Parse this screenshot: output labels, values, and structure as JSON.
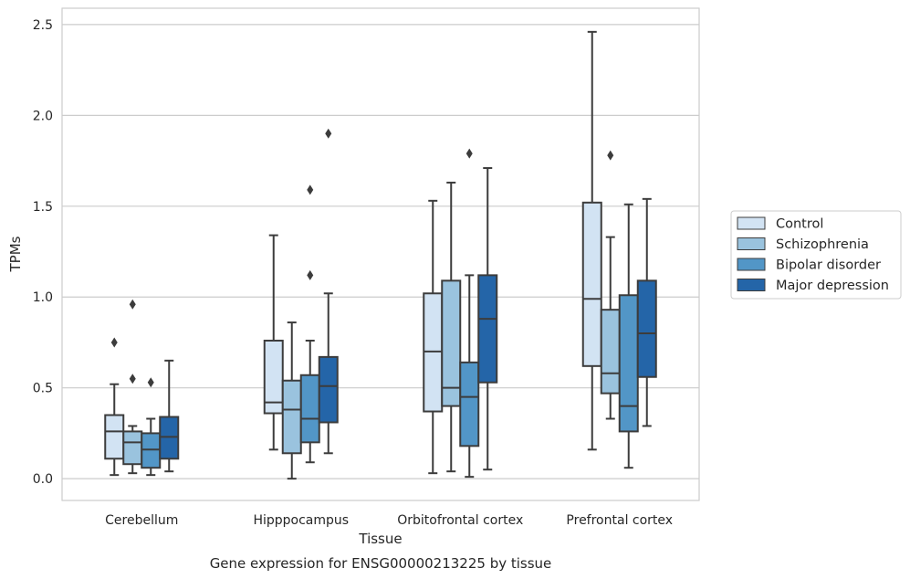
{
  "chart_data": {
    "type": "boxplot",
    "title": "",
    "caption": "Gene expression for ENSG00000213225 by tissue",
    "xlabel": "Tissue",
    "ylabel": "TPMs",
    "ylim": [
      -0.12,
      2.59
    ],
    "yticks": [
      "0.0",
      "0.5",
      "1.0",
      "1.5",
      "2.0",
      "2.5"
    ],
    "ytick_values": [
      0,
      0.5,
      1.0,
      1.5,
      2.0,
      2.5
    ],
    "grid": "horizontal",
    "legend_position": "right",
    "categories": [
      "Cerebellum",
      "Hipppocampus",
      "Orbitofrontal cortex",
      "Prefrontal cortex"
    ],
    "series": [
      {
        "name": "Control",
        "color": "#d2e3f3",
        "boxes": [
          {
            "whislo": 0.02,
            "q1": 0.11,
            "med": 0.26,
            "q3": 0.35,
            "whishi": 0.52,
            "fliers": [
              0.75
            ]
          },
          {
            "whislo": 0.16,
            "q1": 0.36,
            "med": 0.42,
            "q3": 0.76,
            "whishi": 1.34,
            "fliers": []
          },
          {
            "whislo": 0.03,
            "q1": 0.37,
            "med": 0.7,
            "q3": 1.02,
            "whishi": 1.53,
            "fliers": []
          },
          {
            "whislo": 0.16,
            "q1": 0.62,
            "med": 0.99,
            "q3": 1.52,
            "whishi": 2.46,
            "fliers": []
          }
        ]
      },
      {
        "name": "Schizophrenia",
        "color": "#9ac3de",
        "boxes": [
          {
            "whislo": 0.03,
            "q1": 0.08,
            "med": 0.2,
            "q3": 0.26,
            "whishi": 0.29,
            "fliers": [
              0.55,
              0.96
            ]
          },
          {
            "whislo": 0.0,
            "q1": 0.14,
            "med": 0.38,
            "q3": 0.54,
            "whishi": 0.86,
            "fliers": []
          },
          {
            "whislo": 0.04,
            "q1": 0.4,
            "med": 0.5,
            "q3": 1.09,
            "whishi": 1.63,
            "fliers": []
          },
          {
            "whislo": 0.33,
            "q1": 0.47,
            "med": 0.58,
            "q3": 0.93,
            "whishi": 1.33,
            "fliers": [
              1.78
            ]
          }
        ]
      },
      {
        "name": "Bipolar disorder",
        "color": "#5296c7",
        "boxes": [
          {
            "whislo": 0.02,
            "q1": 0.06,
            "med": 0.16,
            "q3": 0.25,
            "whishi": 0.33,
            "fliers": [
              0.53
            ]
          },
          {
            "whislo": 0.09,
            "q1": 0.2,
            "med": 0.33,
            "q3": 0.57,
            "whishi": 0.76,
            "fliers": [
              1.12,
              1.59
            ]
          },
          {
            "whislo": 0.01,
            "q1": 0.18,
            "med": 0.45,
            "q3": 0.64,
            "whishi": 1.12,
            "fliers": [
              1.79
            ]
          },
          {
            "whislo": 0.06,
            "q1": 0.26,
            "med": 0.4,
            "q3": 1.01,
            "whishi": 1.51,
            "fliers": []
          }
        ]
      },
      {
        "name": "Major depression",
        "color": "#2465a8",
        "boxes": [
          {
            "whislo": 0.04,
            "q1": 0.11,
            "med": 0.23,
            "q3": 0.34,
            "whishi": 0.65,
            "fliers": []
          },
          {
            "whislo": 0.14,
            "q1": 0.31,
            "med": 0.51,
            "q3": 0.67,
            "whishi": 1.02,
            "fliers": [
              1.9
            ]
          },
          {
            "whislo": 0.05,
            "q1": 0.53,
            "med": 0.88,
            "q3": 1.12,
            "whishi": 1.71,
            "fliers": []
          },
          {
            "whislo": 0.29,
            "q1": 0.56,
            "med": 0.8,
            "q3": 1.09,
            "whishi": 1.54,
            "fliers": []
          }
        ]
      }
    ]
  }
}
